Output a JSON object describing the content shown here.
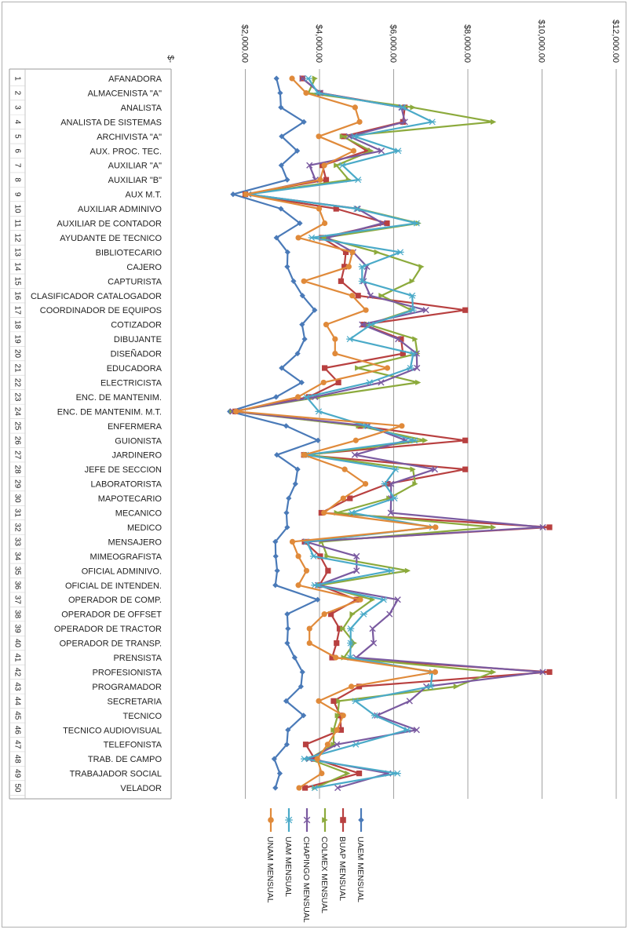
{
  "chart_data": {
    "type": "line",
    "orientation": "rotated-90",
    "xlim": [
      0,
      12000
    ],
    "x_ticks": [
      {
        "value": 0,
        "label": "$-"
      },
      {
        "value": 2000,
        "label": "$2,000.00"
      },
      {
        "value": 4000,
        "label": "$4,000.00"
      },
      {
        "value": 6000,
        "label": "$6,000.00"
      },
      {
        "value": 8000,
        "label": "$8,000.00"
      },
      {
        "value": 10000,
        "label": "$10,000.00"
      },
      {
        "value": 12000,
        "label": "$12,000.00"
      }
    ],
    "grid": "vertical-major",
    "legend_position": "bottom",
    "categories": [
      {
        "num": "1",
        "name": "AFANADORA"
      },
      {
        "num": "2",
        "name": "ALMACENISTA \"A\""
      },
      {
        "num": "3",
        "name": "ANALISTA"
      },
      {
        "num": "4",
        "name": "ANALISTA DE SISTEMAS"
      },
      {
        "num": "5",
        "name": "ARCHIVISTA  \"A\""
      },
      {
        "num": "6",
        "name": "AUX. PROC. TEC."
      },
      {
        "num": "7",
        "name": "AUXILIAR \"A\""
      },
      {
        "num": "8",
        "name": "AUXILIAR \"B\""
      },
      {
        "num": "9",
        "name": "AUX M.T."
      },
      {
        "num": "10",
        "name": "AUXILIAR ADMINIVO"
      },
      {
        "num": "11",
        "name": "AUXILIAR DE CONTADOR"
      },
      {
        "num": "12",
        "name": "AYUDANTE DE TECNICO"
      },
      {
        "num": "13",
        "name": "BIBLIOTECARIO"
      },
      {
        "num": "14",
        "name": "CAJERO"
      },
      {
        "num": "15",
        "name": "CAPTURISTA"
      },
      {
        "num": "16",
        "name": "CLASIFICADOR CATALOGADOR"
      },
      {
        "num": "17",
        "name": "COORDINADOR DE EQUIPOS"
      },
      {
        "num": "18",
        "name": "COTIZADOR"
      },
      {
        "num": "19",
        "name": "DIBUJANTE"
      },
      {
        "num": "20",
        "name": "DISEÑADOR"
      },
      {
        "num": "21",
        "name": "EDUCADORA"
      },
      {
        "num": "22",
        "name": "ELECTRICISTA"
      },
      {
        "num": "23",
        "name": "ENC. DE MANTENIM."
      },
      {
        "num": "24",
        "name": "ENC. DE MANTENIM.  M.T."
      },
      {
        "num": "25",
        "name": "ENFERMERA"
      },
      {
        "num": "26",
        "name": "GUIONISTA"
      },
      {
        "num": "27",
        "name": "JARDINERO"
      },
      {
        "num": "28",
        "name": "JEFE DE SECCION"
      },
      {
        "num": "29",
        "name": "LABORATORISTA"
      },
      {
        "num": "30",
        "name": "MAPOTECARIO"
      },
      {
        "num": "31",
        "name": "MECANICO"
      },
      {
        "num": "32",
        "name": "MEDICO"
      },
      {
        "num": "33",
        "name": "MENSAJERO"
      },
      {
        "num": "34",
        "name": "MIMEOGRAFISTA"
      },
      {
        "num": "35",
        "name": "OFICIAL ADMINIVO."
      },
      {
        "num": "36",
        "name": "OFICIAL DE INTENDEN."
      },
      {
        "num": "37",
        "name": "OPERADOR DE COMP."
      },
      {
        "num": "38",
        "name": "OPERADOR DE OFFSET"
      },
      {
        "num": "39",
        "name": "OPERADOR DE TRACTOR"
      },
      {
        "num": "40",
        "name": "OPERADOR DE TRANSP."
      },
      {
        "num": "41",
        "name": "PRENSISTA"
      },
      {
        "num": "42",
        "name": "PROFESIONISTA"
      },
      {
        "num": "43",
        "name": "PROGRAMADOR"
      },
      {
        "num": "44",
        "name": "SECRETARIA"
      },
      {
        "num": "45",
        "name": "TECNICO"
      },
      {
        "num": "46",
        "name": "TECNICO AUDIOVISUAL"
      },
      {
        "num": "47",
        "name": "TELEFONISTA"
      },
      {
        "num": "48",
        "name": "TRAB. DE CAMPO"
      },
      {
        "num": "49",
        "name": "TRABAJADOR SOCIAL"
      },
      {
        "num": "50",
        "name": "VELADOR"
      }
    ],
    "series": [
      {
        "name": "UAEM MENSUAL",
        "color": "#4a7ab8",
        "marker": "diamond",
        "values": [
          2840,
          2940,
          2960,
          3580,
          2980,
          3400,
          2970,
          3130,
          1670,
          2960,
          3470,
          2840,
          3140,
          3130,
          3300,
          3540,
          3870,
          3530,
          3600,
          3410,
          2980,
          3520,
          2830,
          1580,
          3100,
          3960,
          2850,
          3410,
          3350,
          3170,
          3110,
          3130,
          2810,
          2820,
          2860,
          2810,
          3950,
          3130,
          3150,
          3130,
          3330,
          3540,
          3500,
          3100,
          3570,
          3150,
          3120,
          2780,
          2930,
          2810
        ]
      },
      {
        "name": "BUAP MENSUAL",
        "color": "#b84040",
        "marker": "square",
        "values": [
          3540,
          4020,
          6300,
          6250,
          4650,
          5280,
          4080,
          4180,
          2000,
          4450,
          5820,
          4060,
          4710,
          4670,
          4580,
          5040,
          7930,
          5190,
          6200,
          6250,
          4140,
          4510,
          3710,
          1730,
          5100,
          7930,
          3580,
          7930,
          5840,
          4820,
          4050,
          10200,
          3600,
          4020,
          4230,
          4000,
          5000,
          4310,
          4540,
          4460,
          4340,
          10200,
          5070,
          4380,
          4560,
          4580,
          3630,
          3870,
          5070,
          3610
        ]
      },
      {
        "name": "COLMEX MENSUAL",
        "color": "#8caa3c",
        "marker": "triangle",
        "values": [
          3880,
          3700,
          6520,
          8690,
          4620,
          5390,
          4460,
          4790,
          2040,
          5040,
          6670,
          4130,
          5550,
          6750,
          6500,
          5670,
          6480,
          5320,
          6580,
          6640,
          5030,
          6660,
          4000,
          1650,
          5060,
          6850,
          3700,
          6520,
          6580,
          5880,
          4470,
          8690,
          4060,
          4210,
          6380,
          4010,
          5430,
          4890,
          4630,
          4940,
          4660,
          8690,
          7690,
          4530,
          4490,
          4380,
          4380,
          3720,
          4760,
          3880
        ]
      },
      {
        "name": "CHAPINGO MENSUAL",
        "color": "#7a5aa0",
        "marker": "x",
        "values": [
          3540,
          4020,
          6210,
          6300,
          4800,
          5670,
          3730,
          3890,
          2080,
          5030,
          5700,
          4220,
          4910,
          5280,
          5190,
          5370,
          6870,
          5150,
          6120,
          6620,
          6630,
          5660,
          3880,
          1660,
          5310,
          6330,
          4950,
          7110,
          5930,
          5930,
          5920,
          10020,
          3630,
          5000,
          5000,
          3960,
          6110,
          5890,
          5430,
          5460,
          4990,
          10020,
          6880,
          6430,
          5550,
          6620,
          4470,
          3720,
          5850,
          4490
        ]
      },
      {
        "name": "UAM MENSUAL",
        "color": "#4aaac8",
        "marker": "asterisk",
        "values": [
          3700,
          3960,
          6240,
          7040,
          4940,
          6120,
          4620,
          5040,
          2080,
          5000,
          6620,
          3790,
          6180,
          5150,
          5150,
          6500,
          6520,
          5390,
          4820,
          6530,
          6450,
          5350,
          3650,
          3980,
          5270,
          6560,
          3630,
          6050,
          5760,
          6020,
          4870,
          7040,
          3660,
          3840,
          5930,
          3870,
          5730,
          5190,
          4840,
          4840,
          4830,
          7040,
          7000,
          4970,
          5490,
          6370,
          4980,
          3590,
          6100,
          3870
        ]
      },
      {
        "name": "UNAM MENSUAL",
        "color": "#e08a3a",
        "marker": "circle",
        "values": [
          3260,
          3640,
          4960,
          5080,
          3980,
          4920,
          4130,
          4020,
          2010,
          3990,
          4140,
          3430,
          4890,
          4790,
          3580,
          4880,
          5250,
          4180,
          4420,
          4420,
          5830,
          4110,
          3420,
          1750,
          6220,
          4980,
          3580,
          4680,
          5240,
          4640,
          4120,
          7130,
          3270,
          3430,
          3650,
          3430,
          5100,
          4130,
          3730,
          3730,
          4440,
          7120,
          4860,
          3980,
          4640,
          4470,
          4220,
          3940,
          4060,
          3450
        ]
      }
    ]
  }
}
